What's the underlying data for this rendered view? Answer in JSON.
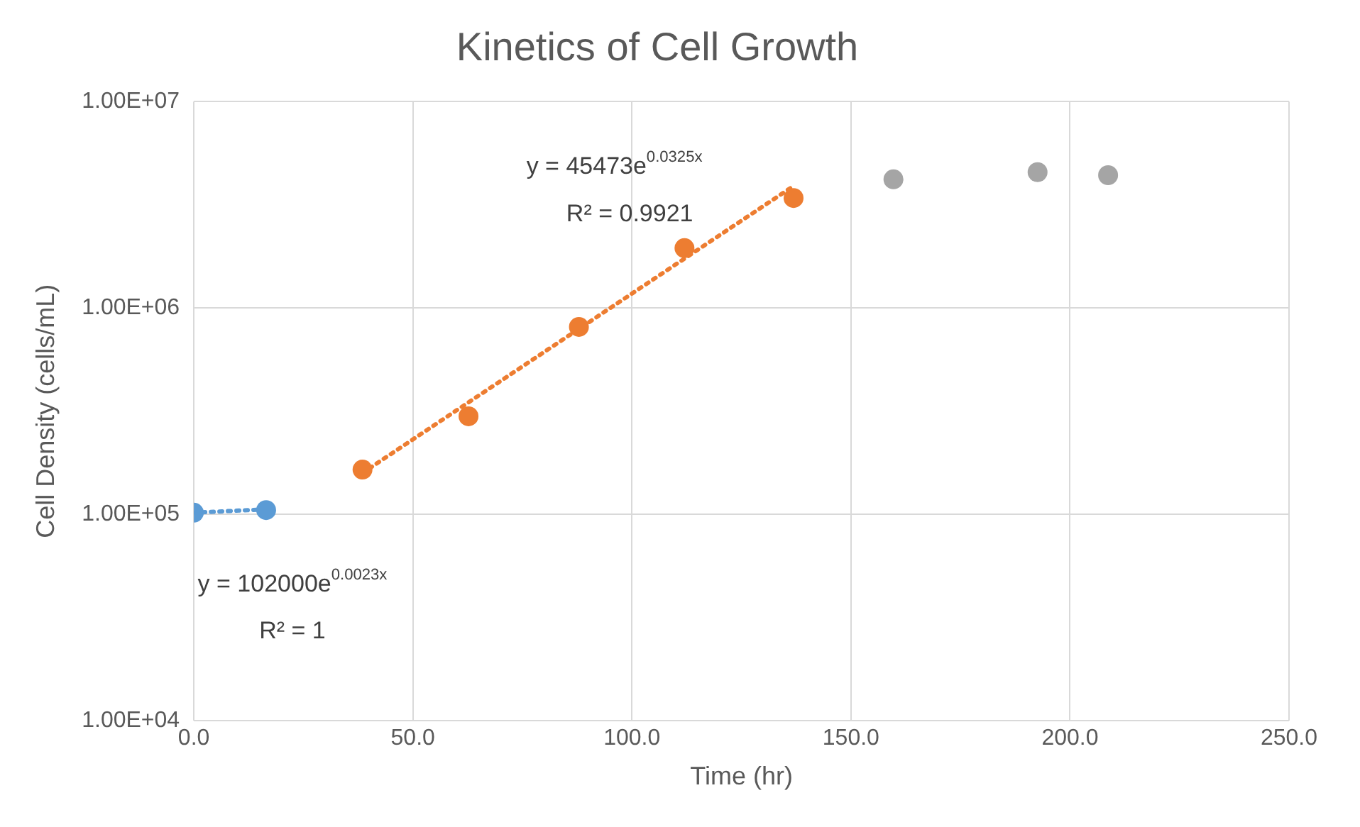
{
  "chart_data": {
    "type": "scatter",
    "title": "Kinetics of Cell Growth",
    "xlabel": "Time (hr)",
    "ylabel": "Cell Density (cells/mL)",
    "series": [
      {
        "type": "scatter",
        "color": "#5b9bd5",
        "x": [
          0,
          16.5
        ],
        "values": [
          102000,
          105000
        ],
        "marker": "circle"
      },
      {
        "type": "scatter",
        "color": "#ed7d31",
        "x": [
          38.5,
          62.7,
          87.9,
          112,
          136.9
        ],
        "values": [
          165000,
          299000,
          810000,
          1950000,
          3410000
        ],
        "marker": "circle"
      },
      {
        "type": "scatter",
        "color": "#a5a5a5",
        "x": [
          159.7,
          192.6,
          208.7
        ],
        "values": [
          4200000,
          4550000,
          4400000
        ],
        "marker": "circle"
      },
      {
        "type": "line",
        "color": "#5b9bd5",
        "x": [
          0,
          16.5
        ],
        "values": [
          102000,
          105900
        ],
        "line_style": "dotted",
        "marker": "none"
      },
      {
        "type": "line",
        "color": "#ed7d31",
        "x": [
          38.5,
          136.9
        ],
        "values": [
          158900,
          3900000
        ],
        "line_style": "dotted",
        "marker": "none"
      }
    ],
    "annotations": [
      "y = 102000e$^{0.0023x}$",
      "R² = 1",
      "y = 45473e$^{0.0325x}$",
      "R² = 0.9921"
    ],
    "xlim": [
      0,
      250
    ],
    "xticks": [
      {
        "value": 0,
        "label": "0.0"
      },
      {
        "value": 50,
        "label": "50.0"
      },
      {
        "value": 100,
        "label": "100.0"
      },
      {
        "value": 150,
        "label": "150.0"
      },
      {
        "value": 200,
        "label": "200.0"
      },
      {
        "value": 250,
        "label": "250.0"
      }
    ],
    "ylim": [
      10000,
      10000000
    ],
    "yticks": [
      {
        "value": 10000,
        "label": "1.00E+04"
      },
      {
        "value": 100000,
        "label": "1.00E+05"
      },
      {
        "value": 1000000,
        "label": "1.00E+06"
      },
      {
        "value": 10000000,
        "label": "1.00E+07"
      }
    ],
    "log": "y",
    "grid": true,
    "legend": false
  }
}
